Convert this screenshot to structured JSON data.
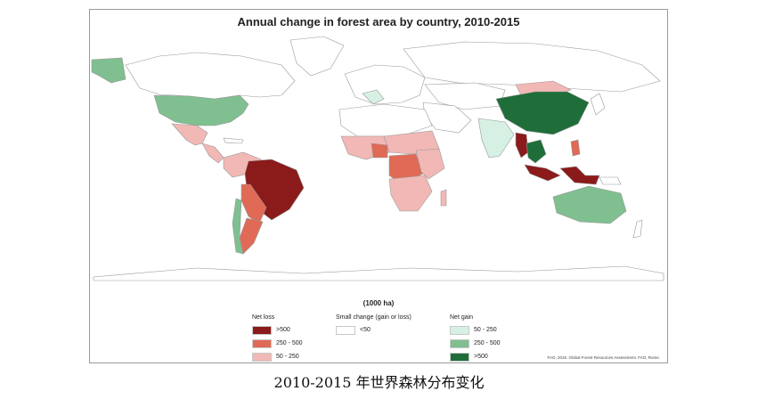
{
  "title": "Annual change in forest area by country, 2010-2015",
  "unit_label": "(1000 ha)",
  "legend": {
    "net_loss": {
      "title": "Net loss",
      "items": [
        {
          "label": ">500",
          "color": "#8b1a1a"
        },
        {
          "label": "250 - 500",
          "color": "#e06a55"
        },
        {
          "label": "50 - 250",
          "color": "#f2b8b5"
        }
      ]
    },
    "small_change": {
      "title": "Small change (gain or loss)",
      "items": [
        {
          "label": "<50",
          "color": "#ffffff"
        }
      ]
    },
    "net_gain": {
      "title": "Net gain",
      "items": [
        {
          "label": "50 - 250",
          "color": "#d6f1e3"
        },
        {
          "label": "250 - 500",
          "color": "#7fbf90"
        },
        {
          "label": ">500",
          "color": "#1f6e3a"
        }
      ]
    }
  },
  "source": "FAO, 2015. Global Forest Resources Assessment. FAO, Rome.",
  "caption": "2010-2015 年世界森林分布变化"
}
